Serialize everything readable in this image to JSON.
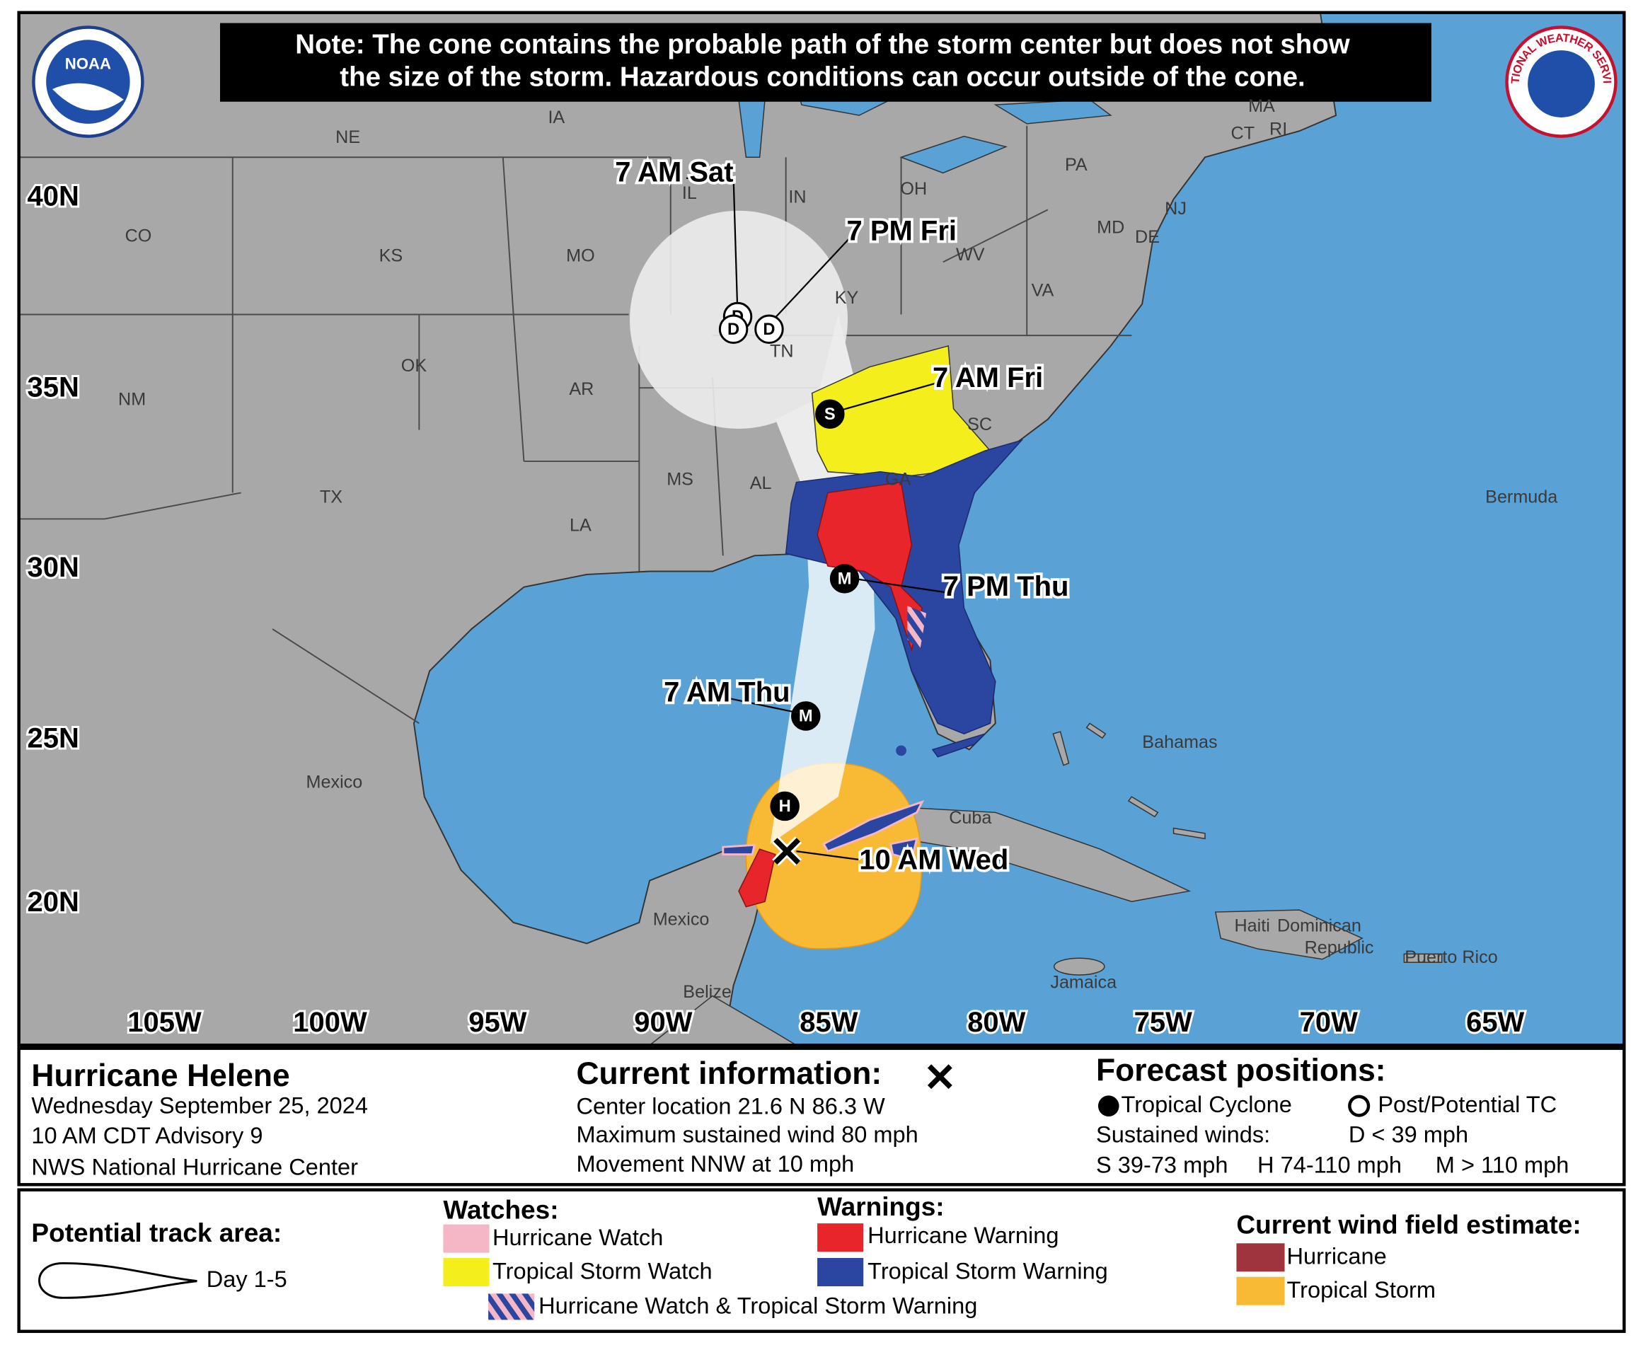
{
  "logos": {
    "noaa": "NOAA",
    "nws": "NATIONAL WEATHER SERVICE"
  },
  "note": [
    "Note: The cone contains the probable path of the storm center but does not show",
    "the size of the storm. Hazardous conditions can occur outside of the cone."
  ],
  "map": {
    "lat_labels": [
      "40N",
      "35N",
      "30N",
      "25N",
      "20N"
    ],
    "lon_labels": [
      "105W",
      "100W",
      "95W",
      "90W",
      "85W",
      "80W",
      "75W",
      "70W",
      "65W"
    ],
    "place_labels": [
      "NE",
      "IA",
      "CO",
      "KS",
      "MO",
      "IL",
      "IN",
      "OH",
      "PA",
      "MA",
      "CT",
      "RI",
      "NJ",
      "MD",
      "DE",
      "WV",
      "VA",
      "KY",
      "TN",
      "OK",
      "AR",
      "NM",
      "SC",
      "GA",
      "MS",
      "AL",
      "TX",
      "LA",
      "Bermuda",
      "Bahamas",
      "Mexico",
      "Cuba",
      "Mexico",
      "Haiti",
      "Dominican",
      "Republic",
      "Puerto Rico",
      "Jamaica",
      "Belize"
    ],
    "forecast_labels": [
      "7 AM Sat",
      "7 PM Fri",
      "7 AM Fri",
      "7 PM Thu",
      "7 AM Thu",
      "10 AM Wed"
    ],
    "forecast_symbols": [
      "D",
      "D",
      "D",
      "S",
      "M",
      "M",
      "H"
    ]
  },
  "info": {
    "storm": {
      "title": "Hurricane Helene",
      "lines": [
        "Wednesday September 25, 2024",
        "10 AM CDT Advisory 9",
        "NWS National Hurricane Center"
      ]
    },
    "current": {
      "title": "Current information:",
      "lines": [
        "Center location 21.6 N 86.3 W",
        "Maximum sustained wind 80 mph",
        "Movement NNW at 10 mph"
      ]
    },
    "forecast": {
      "title": "Forecast positions:",
      "tropical_cyclone": "Tropical Cyclone",
      "post_potential": "Post/Potential TC",
      "sustained": "Sustained winds:",
      "d": "D < 39 mph",
      "s": "S 39-73 mph",
      "h": "H 74-110 mph",
      "m": "M > 110 mph"
    }
  },
  "legend": {
    "track_title": "Potential track area:",
    "track_day": "Day 1-5",
    "watches_title": "Watches:",
    "hurricane_watch": "Hurricane Watch",
    "ts_watch": "Tropical Storm Watch",
    "warnings_title": "Warnings:",
    "hurricane_warning": "Hurricane Warning",
    "ts_warning": "Tropical Storm Warning",
    "combo": "Hurricane Watch & Tropical Storm Warning",
    "wind_title": "Current wind field estimate:",
    "wind_hurricane": "Hurricane",
    "wind_ts": "Tropical Storm"
  }
}
